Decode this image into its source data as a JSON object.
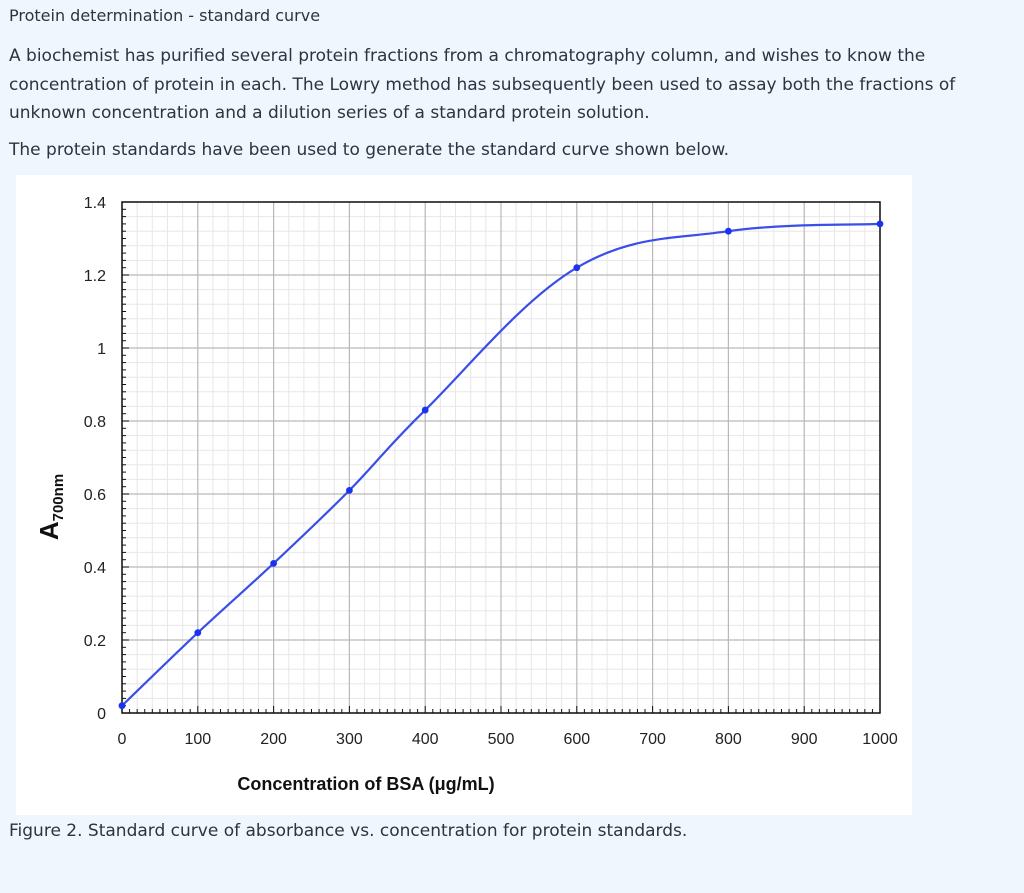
{
  "page": {
    "heading": "Protein determination - standard curve",
    "intro": "A biochemist has purified several protein fractions from a chromatography column, and wishes to know the concentration of protein in each. The Lowry method has subsequently been used to assay both the fractions of unknown concentration and a dilution series of a standard protein solution.",
    "standards_note": "The protein standards have been used to generate the standard curve shown below.",
    "caption": "Figure 2. Standard curve of absorbance vs. concentration for protein standards."
  },
  "chart_data": {
    "type": "line",
    "xlabel": "Concentration of BSA (μg/mL)",
    "ylabel_main": "A",
    "ylabel_sub": "700nm",
    "xlim": [
      0,
      1000
    ],
    "ylim": [
      0,
      1.4
    ],
    "x_ticks": [
      0,
      100,
      200,
      300,
      400,
      500,
      600,
      700,
      800,
      900,
      1000
    ],
    "y_ticks": [
      0,
      0.2,
      0.4,
      0.6,
      0.8,
      1,
      1.2,
      1.4
    ],
    "x_tick_labels": [
      "0",
      "100",
      "200",
      "300",
      "400",
      "500",
      "600",
      "700",
      "800",
      "900",
      "1000"
    ],
    "y_tick_labels": [
      "0",
      "0.2",
      "0.4",
      "0.6",
      "0.8",
      "1",
      "1.2",
      "1.4"
    ],
    "grid": true,
    "line_color": "#3a4ee8",
    "marker_color": "#1a33f0",
    "series": [
      {
        "x": [
          0,
          100,
          200,
          300,
          400,
          600,
          800,
          1000
        ],
        "y": [
          0.02,
          0.22,
          0.41,
          0.61,
          0.83,
          1.22,
          1.32,
          1.34
        ]
      }
    ]
  }
}
